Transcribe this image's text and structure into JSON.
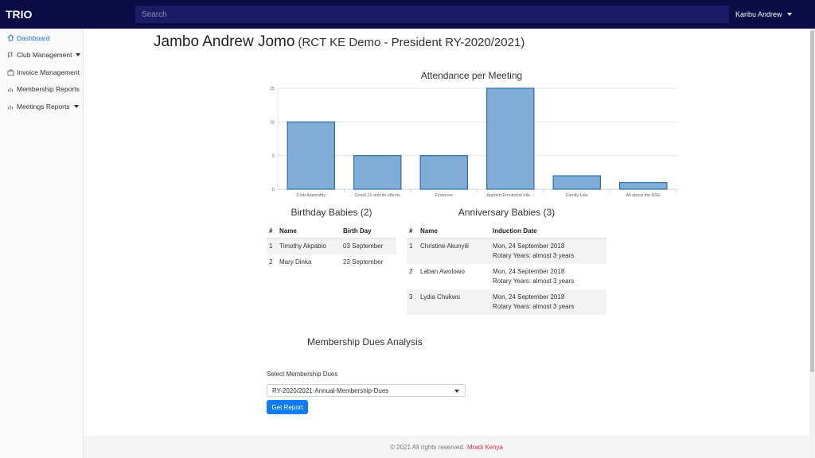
{
  "app": {
    "brand": "TRIO"
  },
  "search": {
    "placeholder": "Search"
  },
  "user_menu": {
    "label": "Karibu Andrew"
  },
  "sidebar": {
    "items": [
      {
        "label": "Dashboard",
        "icon": "home-icon",
        "active": true
      },
      {
        "label": "Club Management",
        "icon": "flag-icon",
        "dropdown": true
      },
      {
        "label": "Invoice Management",
        "icon": "briefcase-icon"
      },
      {
        "label": "Membership Reports",
        "icon": "bar-chart-icon"
      },
      {
        "label": "Meetings Reports",
        "icon": "bar-chart-icon",
        "dropdown": true
      }
    ]
  },
  "header": {
    "greeting": "Jambo Andrew Jomo",
    "subtitle": "(RCT KE Demo - President RY-2020/2021)"
  },
  "chart_data": {
    "type": "bar",
    "title": "Attendance per Meeting",
    "categories": [
      "Club Assembly",
      "Covid 19 and its effects",
      "Finances",
      "Applied Emotional Inte...",
      "Family Law",
      "All about the NSE"
    ],
    "values": [
      10,
      5,
      5,
      15,
      2,
      1
    ],
    "ylim": [
      0,
      15
    ],
    "yticks": [
      0,
      5,
      10,
      15
    ],
    "grid": true,
    "colors": {
      "fill": "#7eaed6",
      "stroke": "#2f6eb0"
    }
  },
  "birthday": {
    "title": "Birthday Babies (2)",
    "columns": [
      "#",
      "Name",
      "Birth Day"
    ],
    "rows": [
      {
        "num": "1",
        "name": "Timothy Akpabio",
        "date": "03 September"
      },
      {
        "num": "2",
        "name": "Mary Dinka",
        "date": "23 September"
      }
    ]
  },
  "anniversary": {
    "title": "Anniversary Babies (3)",
    "columns": [
      "#",
      "Name",
      "Induction Date"
    ],
    "rows": [
      {
        "num": "1",
        "name": "Christine Akunyili",
        "date": "Mon, 24 September 2018",
        "years": "Rotary Years: almost 3 years"
      },
      {
        "num": "2",
        "name": "Laban Awolowo",
        "date": "Mon, 24 September 2018",
        "years": "Rotary Years: almost 3 years"
      },
      {
        "num": "3",
        "name": "Lydia Chukwu",
        "date": "Mon, 24 September 2018",
        "years": "Rotary Years: almost 3 years"
      }
    ]
  },
  "dues": {
    "title": "Membership Dues Analysis",
    "select_label": "Select Membership Dues",
    "selected": "RY-2020/2021-Annual-Membership-Dues",
    "button": "Get Report"
  },
  "footer": {
    "text": "© 2021 All rights reserved.",
    "link": "Mradi Kenya"
  },
  "colors": {
    "topbar": "#0b0b45",
    "accent": "#0d7cf2",
    "footer_link": "#dc3545"
  }
}
